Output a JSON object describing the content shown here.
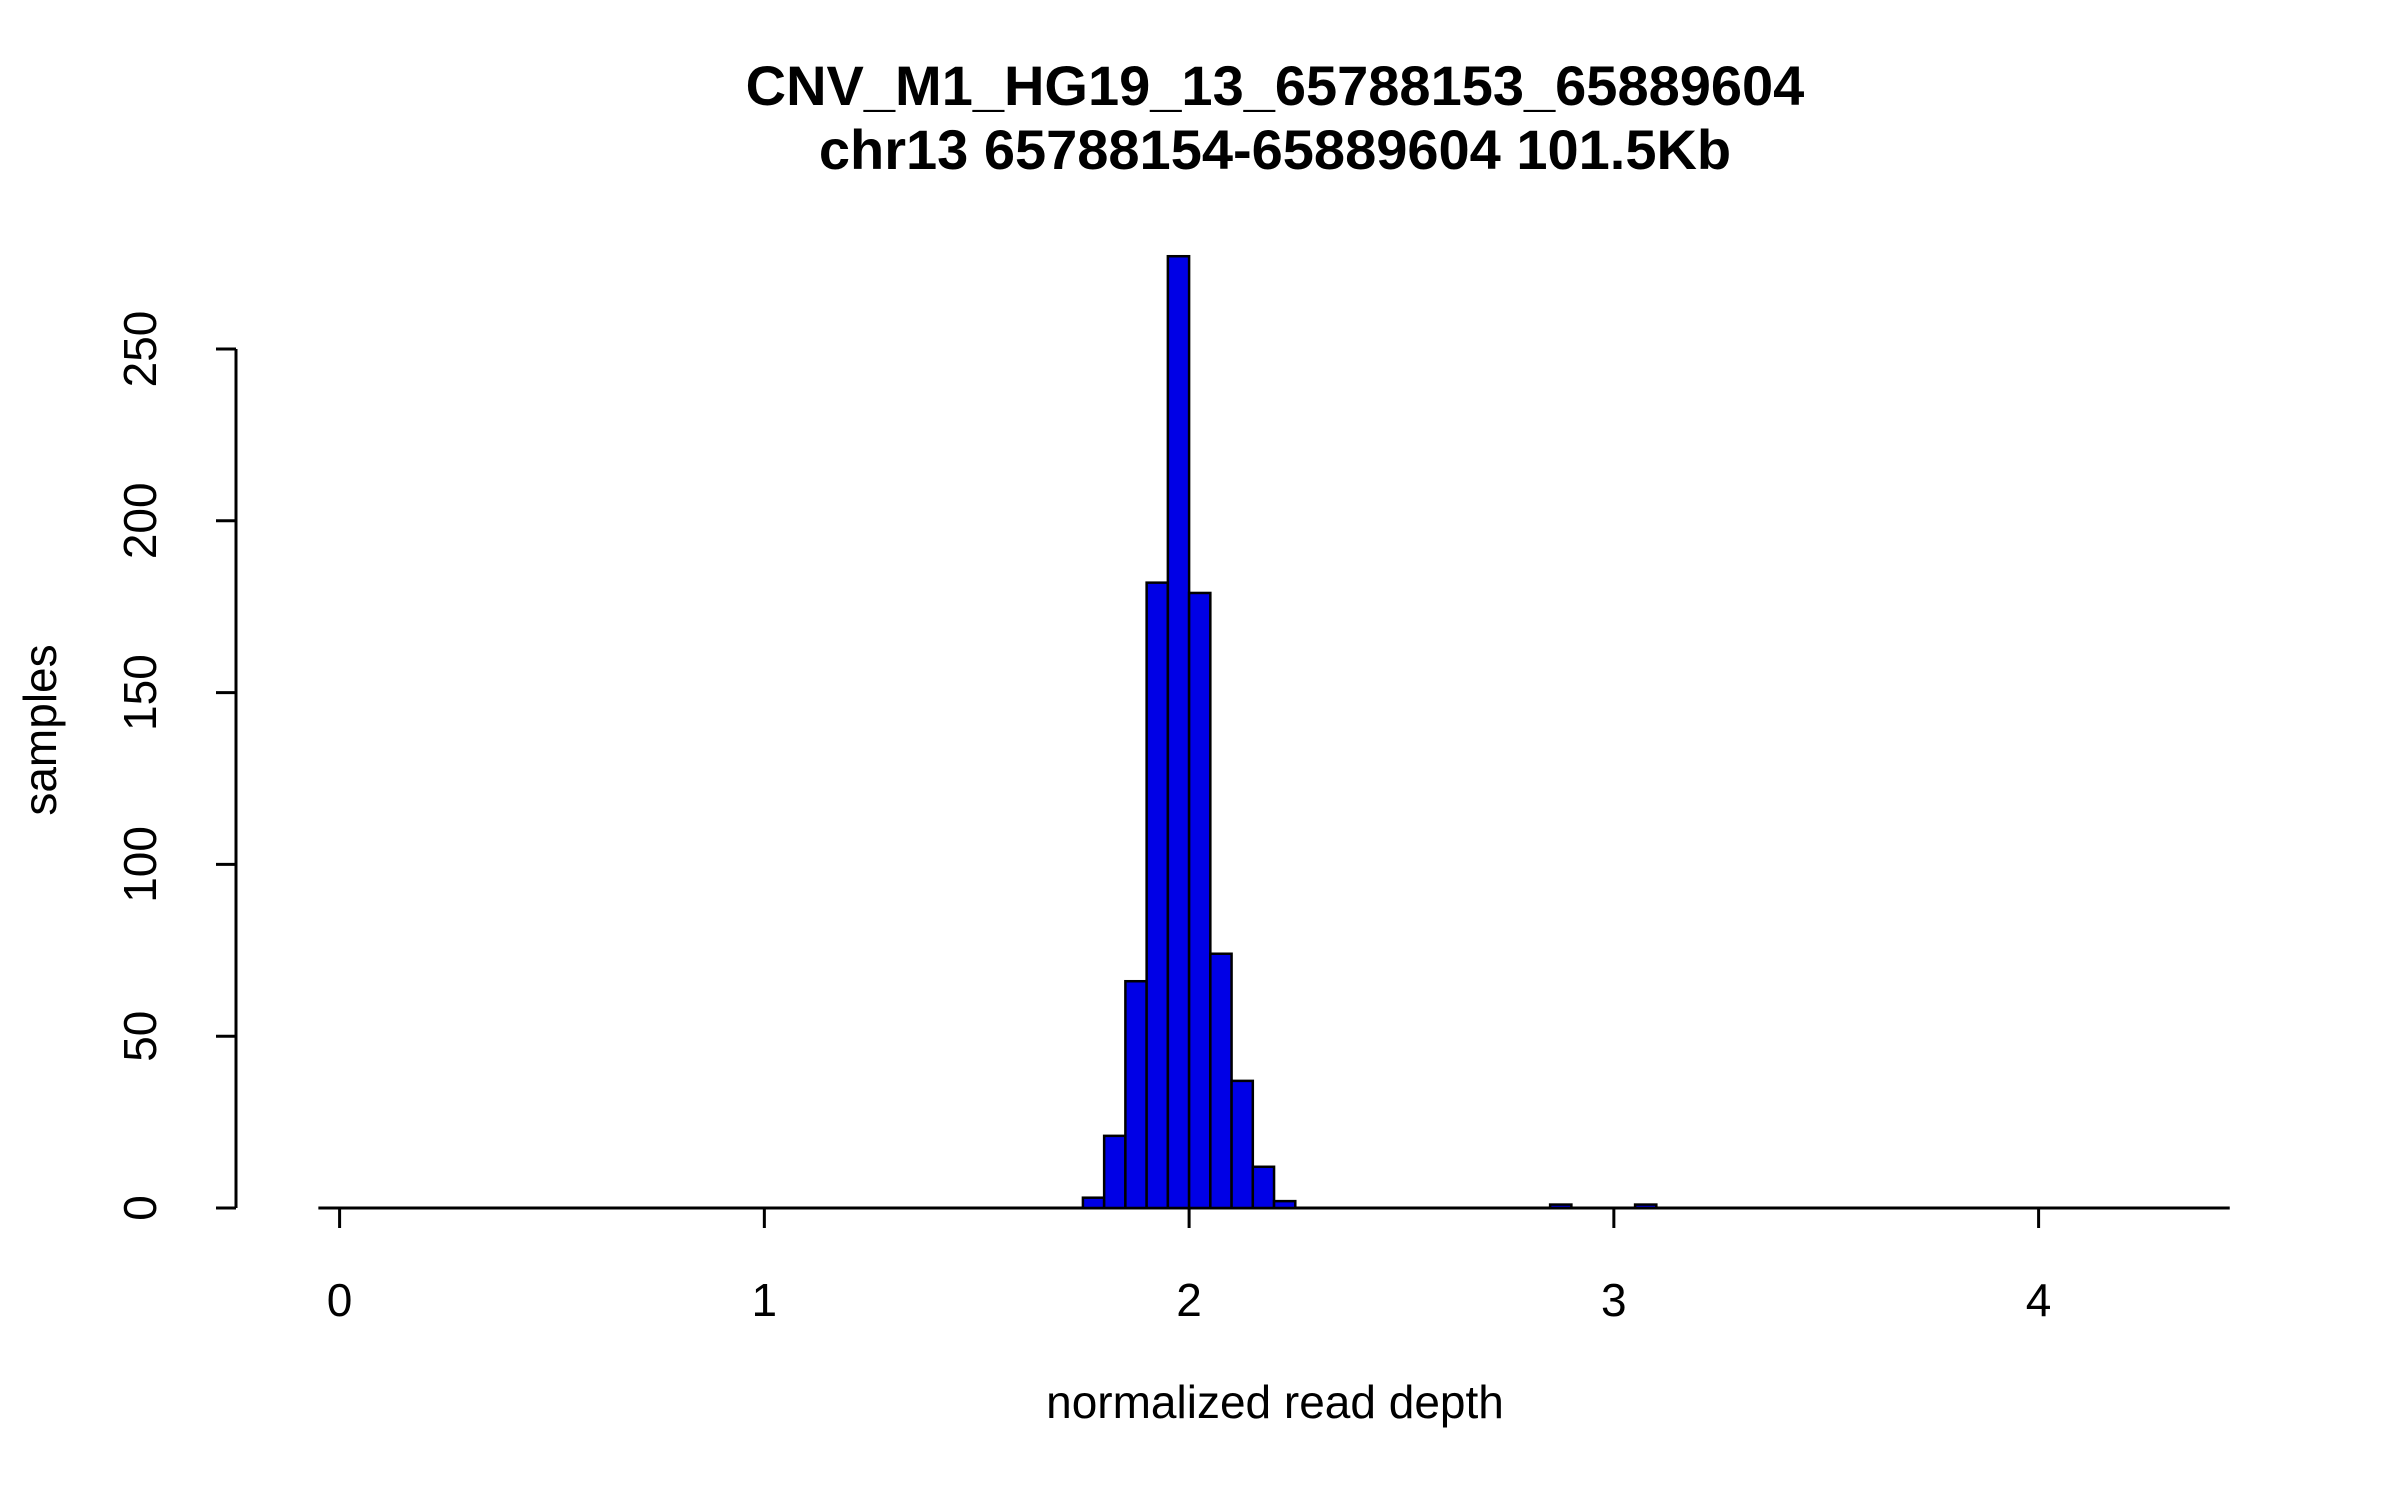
{
  "page": {
    "background": "#ffffff"
  },
  "chart_data": {
    "type": "bar",
    "chart_kind": "histogram",
    "title": "CNV_M1_HG19_13_65788153_65889604",
    "subtitle": "chr13 65788154-65889604 101.5Kb",
    "xlabel": "normalized read depth",
    "ylabel": "samples",
    "x_ticks": [
      0,
      1,
      2,
      3,
      4
    ],
    "y_ticks": [
      0,
      50,
      100,
      150,
      200,
      250
    ],
    "xlim": [
      -0.05,
      4.45
    ],
    "ylim": [
      0,
      280
    ],
    "bin_width": 0.05,
    "bins": [
      {
        "start": 1.75,
        "count": 3
      },
      {
        "start": 1.8,
        "count": 21
      },
      {
        "start": 1.85,
        "count": 66
      },
      {
        "start": 1.9,
        "count": 182
      },
      {
        "start": 1.95,
        "count": 277
      },
      {
        "start": 2.0,
        "count": 179
      },
      {
        "start": 2.05,
        "count": 74
      },
      {
        "start": 2.1,
        "count": 37
      },
      {
        "start": 2.15,
        "count": 12
      },
      {
        "start": 2.2,
        "count": 2
      },
      {
        "start": 2.85,
        "count": 1
      },
      {
        "start": 3.05,
        "count": 1
      }
    ],
    "bar_fill": "#0000E6",
    "bar_stroke": "#000000",
    "axis_color": "#000000",
    "grid": false,
    "legend": "none"
  }
}
